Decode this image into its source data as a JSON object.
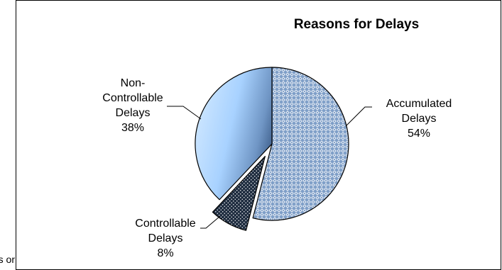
{
  "chart_data": {
    "type": "pie",
    "title": "Reasons for Delays",
    "slices": [
      {
        "label": "Accumulated Delays",
        "label_lines": [
          "Accumulated",
          "Delays"
        ],
        "percent_text": "54%",
        "value": 54
      },
      {
        "label": "Controllable Delays",
        "label_lines": [
          "Controllable",
          "Delays"
        ],
        "percent_text": "8%",
        "value": 8,
        "exploded": true
      },
      {
        "label": "Non-Controllable Delays",
        "label_lines": [
          "Non-",
          "Controllable",
          "Delays"
        ],
        "percent_text": "38%",
        "value": 38
      }
    ],
    "start_angle_deg": 0,
    "direction": "clockwise",
    "legend": "none",
    "colors": {
      "accumulated_fill": "#7f9fc8",
      "accumulated_pattern": "#ffffff",
      "controllable_fill": "#1f2d40",
      "controllable_pattern": "#ffffff",
      "noncontrollable_light": "#a8d2ff",
      "noncontrollable_dark": "#3a5a86",
      "outline": "#000000"
    }
  },
  "fragment_text": "s or"
}
